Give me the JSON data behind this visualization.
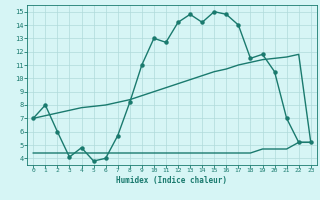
{
  "xlabel": "Humidex (Indice chaleur)",
  "x_ticks": [
    0,
    1,
    2,
    3,
    4,
    5,
    6,
    7,
    8,
    9,
    10,
    11,
    12,
    13,
    14,
    15,
    16,
    17,
    18,
    19,
    20,
    21,
    22,
    23
  ],
  "y_ticks": [
    4,
    5,
    6,
    7,
    8,
    9,
    10,
    11,
    12,
    13,
    14,
    15
  ],
  "ylim": [
    3.5,
    15.5
  ],
  "xlim": [
    -0.5,
    23.5
  ],
  "line1_x": [
    0,
    1,
    2,
    3,
    4,
    5,
    6,
    7,
    8,
    9,
    10,
    11,
    12,
    13,
    14,
    15,
    16,
    17,
    18,
    19,
    20,
    21,
    22,
    23
  ],
  "line1_y": [
    7.0,
    8.0,
    6.0,
    4.1,
    4.8,
    3.8,
    4.0,
    5.7,
    8.2,
    11.0,
    13.0,
    12.7,
    14.2,
    14.8,
    14.2,
    15.0,
    14.8,
    14.0,
    11.5,
    11.8,
    10.5,
    7.0,
    5.2,
    5.2
  ],
  "line2_x": [
    0,
    1,
    2,
    3,
    4,
    5,
    6,
    7,
    8,
    9,
    10,
    11,
    12,
    13,
    14,
    15,
    16,
    17,
    18,
    19,
    20,
    21,
    22,
    23
  ],
  "line2_y": [
    7.0,
    7.2,
    7.4,
    7.6,
    7.8,
    7.9,
    8.0,
    8.2,
    8.4,
    8.7,
    9.0,
    9.3,
    9.6,
    9.9,
    10.2,
    10.5,
    10.7,
    11.0,
    11.2,
    11.4,
    11.5,
    11.6,
    11.8,
    5.2
  ],
  "line3_x": [
    0,
    1,
    2,
    3,
    4,
    5,
    6,
    7,
    8,
    9,
    10,
    11,
    12,
    13,
    14,
    15,
    16,
    17,
    18,
    19,
    20,
    21,
    22,
    23
  ],
  "line3_y": [
    4.4,
    4.4,
    4.4,
    4.4,
    4.4,
    4.4,
    4.4,
    4.4,
    4.4,
    4.4,
    4.4,
    4.4,
    4.4,
    4.4,
    4.4,
    4.4,
    4.4,
    4.4,
    4.4,
    4.7,
    4.7,
    4.7,
    5.2,
    5.2
  ],
  "line_color": "#1a7a6e",
  "bg_color": "#d6f5f5",
  "grid_color": "#b0dada",
  "font_color": "#1a7a6e",
  "marker": "o",
  "markersize": 2.2,
  "linewidth": 1.0
}
